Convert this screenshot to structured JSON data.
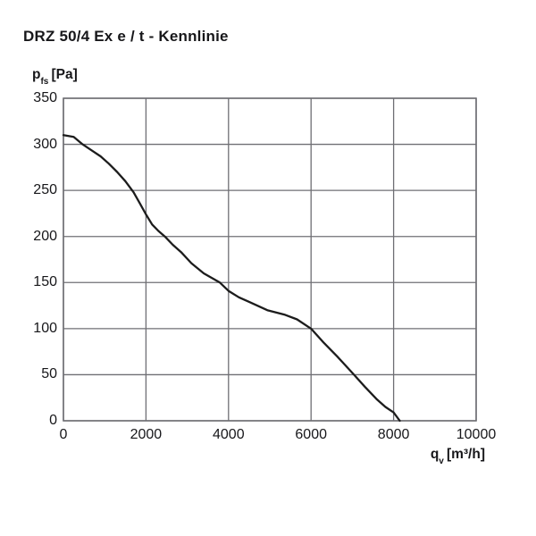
{
  "chart_data": {
    "type": "line",
    "title": "DRZ 50/4 Ex e / t - Kennlinie",
    "ylabel": {
      "symbol": "p",
      "subscript": "fs",
      "unit": "[Pa]"
    },
    "xlabel": {
      "symbol": "q",
      "subscript": "v",
      "unit": "[m³/h]"
    },
    "xlim": [
      0,
      10000
    ],
    "ylim": [
      0,
      350
    ],
    "xticks": [
      0,
      2000,
      4000,
      6000,
      8000,
      10000
    ],
    "yticks": [
      0,
      50,
      100,
      150,
      200,
      250,
      300,
      350
    ],
    "grid": true,
    "legend": false,
    "colors": {
      "background": "#ffffff",
      "grid": "#6f6f74",
      "frame": "#6f6f74",
      "curve": "#1c1c1c",
      "text": "#17171a"
    },
    "series": [
      {
        "name": "DRZ 50/4 Ex e / t",
        "points": [
          [
            0,
            310
          ],
          [
            250,
            308
          ],
          [
            465,
            300
          ],
          [
            700,
            293
          ],
          [
            900,
            287
          ],
          [
            1100,
            279
          ],
          [
            1300,
            270
          ],
          [
            1500,
            260
          ],
          [
            1700,
            248
          ],
          [
            1850,
            236
          ],
          [
            2000,
            224
          ],
          [
            2150,
            213
          ],
          [
            2300,
            206
          ],
          [
            2456,
            200
          ],
          [
            2650,
            191
          ],
          [
            2850,
            183
          ],
          [
            3100,
            171
          ],
          [
            3400,
            160
          ],
          [
            3790,
            150
          ],
          [
            4000,
            141
          ],
          [
            4250,
            134
          ],
          [
            4500,
            129
          ],
          [
            4940,
            120
          ],
          [
            5370,
            115
          ],
          [
            5660,
            110
          ],
          [
            6000,
            100
          ],
          [
            6300,
            85
          ],
          [
            6630,
            70
          ],
          [
            7040,
            50
          ],
          [
            7300,
            37
          ],
          [
            7600,
            23
          ],
          [
            7800,
            15
          ],
          [
            8000,
            9
          ],
          [
            8150,
            0
          ]
        ]
      }
    ]
  }
}
